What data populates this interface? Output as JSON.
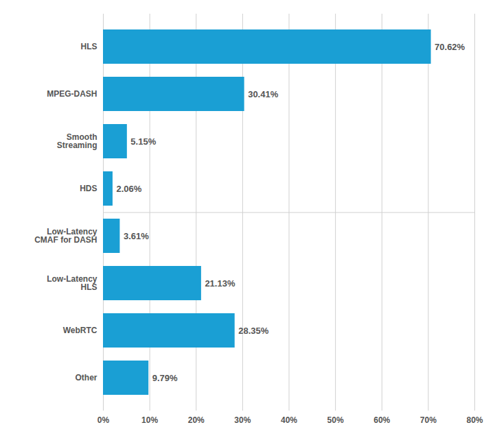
{
  "chart_data": {
    "type": "bar",
    "orientation": "horizontal",
    "categories": [
      "HLS",
      "MPEG-DASH",
      "Smooth\nStreaming",
      "HDS",
      "Low-Latency\nCMAF for DASH",
      "Low-Latency\nHLS",
      "WebRTC",
      "Other"
    ],
    "values": [
      70.62,
      30.41,
      5.15,
      2.06,
      3.61,
      21.13,
      28.35,
      9.79
    ],
    "value_labels": [
      "70.62%",
      "30.41%",
      "5.15%",
      "2.06%",
      "3.61%",
      "21.13%",
      "28.35%",
      "9.79%"
    ],
    "data_labels": true,
    "color": "#1a9fd4",
    "xlim": [
      0,
      80
    ],
    "xticks": [
      {
        "value": 0,
        "label": "0%"
      },
      {
        "value": 10,
        "label": "10%"
      },
      {
        "value": 20,
        "label": "20%"
      },
      {
        "value": 30,
        "label": "30%"
      },
      {
        "value": 40,
        "label": "40%"
      },
      {
        "value": 50,
        "label": "50%"
      },
      {
        "value": 60,
        "label": "60%"
      },
      {
        "value": 70,
        "label": "70%"
      },
      {
        "value": 80,
        "label": "80%"
      }
    ],
    "grid": true
  }
}
